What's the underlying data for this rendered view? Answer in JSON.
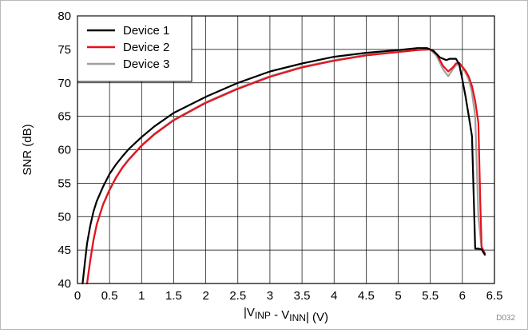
{
  "chart_data": {
    "type": "line",
    "xlabel": "|V_INP - V_INN| (V)",
    "ylabel": "SNR (dB)",
    "xlim": [
      0,
      6.5
    ],
    "ylim": [
      40,
      80
    ],
    "xticks": [
      "0",
      "0.5",
      "1",
      "1.5",
      "2",
      "2.5",
      "3",
      "3.5",
      "4",
      "4.5",
      "5",
      "5.5",
      "6",
      "6.5"
    ],
    "yticks": [
      "40",
      "45",
      "50",
      "55",
      "60",
      "65",
      "70",
      "75",
      "80"
    ],
    "grid": true,
    "legend_position": "top-left",
    "figure_code": "D032",
    "series": [
      {
        "name": "Device 1",
        "color": "#000000",
        "x": [
          0.08,
          0.12,
          0.15,
          0.2,
          0.25,
          0.3,
          0.4,
          0.5,
          0.6,
          0.7,
          0.8,
          1.0,
          1.2,
          1.5,
          2.0,
          2.5,
          3.0,
          3.5,
          4.0,
          4.5,
          5.0,
          5.3,
          5.45,
          5.55,
          5.65,
          5.75,
          5.8,
          5.9,
          5.95,
          6.0,
          6.05,
          6.1,
          6.15,
          6.2,
          6.25,
          6.3,
          6.35
        ],
        "values": [
          40.0,
          43.5,
          46.0,
          48.7,
          50.8,
          52.3,
          54.5,
          56.4,
          57.8,
          59.0,
          60.1,
          61.9,
          63.5,
          65.5,
          67.9,
          70.0,
          71.7,
          72.9,
          73.9,
          74.5,
          74.9,
          75.2,
          75.2,
          74.8,
          73.8,
          73.4,
          73.6,
          73.6,
          72.8,
          70.5,
          67.9,
          65.0,
          62.0,
          45.2,
          45.2,
          45.1,
          44.3
        ]
      },
      {
        "name": "Device 2",
        "color": "#e8101a",
        "x": [
          0.15,
          0.2,
          0.25,
          0.3,
          0.4,
          0.5,
          0.6,
          0.7,
          0.8,
          1.0,
          1.2,
          1.5,
          2.0,
          2.5,
          3.0,
          3.5,
          4.0,
          4.5,
          5.0,
          5.3,
          5.5,
          5.6,
          5.7,
          5.78,
          5.85,
          5.9,
          5.95,
          6.0,
          6.05,
          6.1,
          6.15,
          6.2,
          6.25,
          6.28,
          6.3,
          6.35
        ],
        "values": [
          40.0,
          43.5,
          46.5,
          48.8,
          51.8,
          54.0,
          55.8,
          57.3,
          58.5,
          60.6,
          62.3,
          64.4,
          67.0,
          69.1,
          70.9,
          72.3,
          73.3,
          74.1,
          74.6,
          74.9,
          75.0,
          74.3,
          72.5,
          71.7,
          72.3,
          72.9,
          73.0,
          72.4,
          71.8,
          70.9,
          69.5,
          67.3,
          64.0,
          52.0,
          45.5,
          44.5
        ]
      },
      {
        "name": "Device 3",
        "color": "#a0a0a0",
        "x": [
          0.15,
          0.2,
          0.25,
          0.3,
          0.4,
          0.5,
          0.6,
          0.7,
          0.8,
          1.0,
          1.2,
          1.5,
          2.0,
          2.5,
          3.0,
          3.5,
          4.0,
          4.5,
          5.0,
          5.3,
          5.5,
          5.6,
          5.7,
          5.78,
          5.85,
          5.9,
          5.95,
          6.0,
          6.05,
          6.1,
          6.15,
          6.2,
          6.25,
          6.3,
          6.35
        ],
        "values": [
          40.0,
          43.7,
          46.6,
          48.9,
          51.9,
          54.1,
          55.9,
          57.4,
          58.6,
          60.7,
          62.4,
          64.5,
          67.1,
          69.2,
          71.0,
          72.4,
          73.4,
          74.2,
          74.7,
          74.9,
          75.0,
          74.0,
          72.0,
          71.0,
          72.0,
          72.6,
          72.8,
          72.3,
          71.5,
          70.5,
          68.5,
          65.0,
          50.0,
          45.3,
          44.5
        ]
      }
    ]
  }
}
